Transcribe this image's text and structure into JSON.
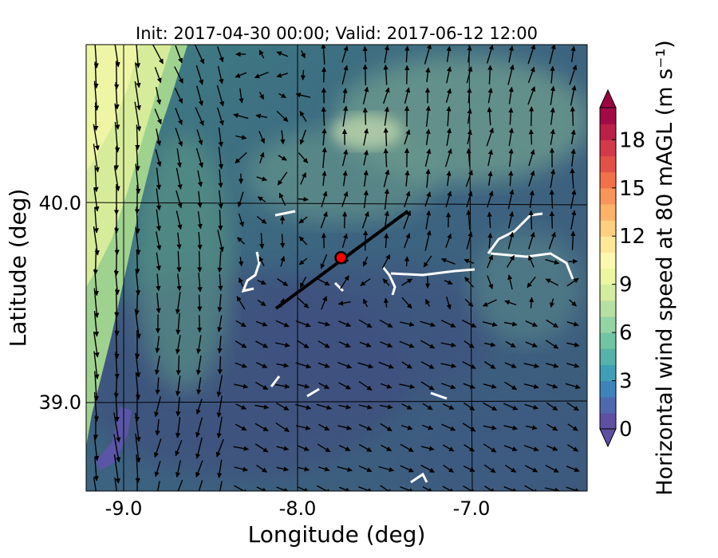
{
  "title": "Init: 2017-04-30 00:00; Valid: 2017-06-12 12:00",
  "xlabel": "Longitude (deg)",
  "ylabel": "Latitude (deg)",
  "xticks": [
    "-9.0",
    "-8.0",
    "-7.0"
  ],
  "yticks": [
    "40.0",
    "39.0"
  ],
  "colorbar": {
    "label": "Horizontal wind speed at 80 mAGL (m s⁻¹)",
    "ticks": [
      "0",
      "3",
      "6",
      "9",
      "12",
      "15",
      "18"
    ],
    "colors": [
      "#5e4fa2",
      "#4f69b0",
      "#3e84bb",
      "#3f9fb6",
      "#56b3a9",
      "#71c4a4",
      "#94d3a4",
      "#b6e0a2",
      "#d4ec9e",
      "#ecf5a0",
      "#fbf8b0",
      "#fde897",
      "#fdd07f",
      "#fcb368",
      "#f8955a",
      "#f1724a",
      "#e25147",
      "#d2394a",
      "#bb2048",
      "#a10a46"
    ],
    "under_color": "#5e4fa2",
    "over_color": "#9e0142"
  },
  "chart_data": {
    "type": "map",
    "xlim": [
      -9.2,
      -6.35
    ],
    "ylim": [
      38.55,
      40.75
    ],
    "point": {
      "lon": -7.75,
      "lat": 39.7,
      "color": "#ff0000"
    },
    "transect": {
      "lon": [
        -8.12,
        -7.37
      ],
      "lat": [
        39.45,
        39.93
      ]
    }
  }
}
